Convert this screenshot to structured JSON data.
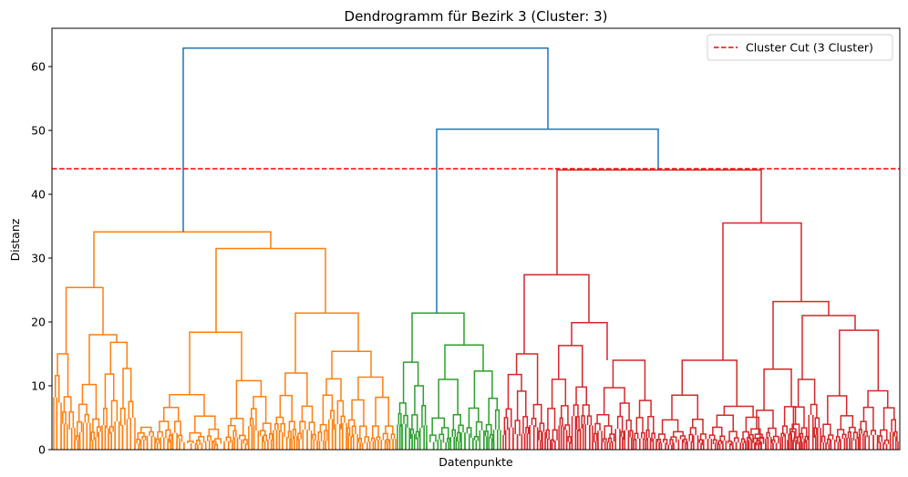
{
  "chart_data": {
    "type": "dendrogram",
    "title": "Dendrogramm für Bezirk 3 (Cluster: 3)",
    "xlabel": "Datenpunkte",
    "ylabel": "Distanz",
    "ylim": [
      0,
      66
    ],
    "yticks": [
      "0",
      "10",
      "20",
      "30",
      "40",
      "50",
      "60"
    ],
    "grid": false,
    "legend_position": "top-right",
    "cut": {
      "y": 44,
      "label": "Cluster Cut (3 Cluster)",
      "color": "#ff0000"
    },
    "colors": {
      "cluster1": "#ff7f0e",
      "cluster2": "#2ca02c",
      "cluster3": "#d62728",
      "above": "#1f77b4"
    },
    "top_links": [
      {
        "y": 62.9,
        "color": "above"
      },
      {
        "y": 50.2,
        "color": "above"
      },
      {
        "y": 43.8,
        "color": "cluster3"
      },
      {
        "y": 34.1,
        "color": "cluster1"
      },
      {
        "y": 35.5,
        "color": "cluster3"
      },
      {
        "y": 31.5,
        "color": "cluster1"
      },
      {
        "y": 27.4,
        "color": "cluster3"
      },
      {
        "y": 25.4,
        "color": "cluster1"
      },
      {
        "y": 23.2,
        "color": "cluster3"
      },
      {
        "y": 21.4,
        "color": "cluster2"
      },
      {
        "y": 21.4,
        "color": "cluster1"
      },
      {
        "y": 21.0,
        "color": "cluster3"
      },
      {
        "y": 19.9,
        "color": "cluster3"
      },
      {
        "y": 18.7,
        "color": "cluster3"
      },
      {
        "y": 18.4,
        "color": "cluster1"
      },
      {
        "y": 18.0,
        "color": "cluster1"
      },
      {
        "y": 16.8,
        "color": "cluster1"
      },
      {
        "y": 16.4,
        "color": "cluster2"
      },
      {
        "y": 16.3,
        "color": "cluster3"
      },
      {
        "y": 15.4,
        "color": "cluster1"
      },
      {
        "y": 15.0,
        "color": "cluster1"
      },
      {
        "y": 15.0,
        "color": "cluster3"
      },
      {
        "y": 14.0,
        "color": "cluster3"
      },
      {
        "y": 13.7,
        "color": "cluster2"
      },
      {
        "y": 12.6,
        "color": "cluster3"
      }
    ]
  }
}
